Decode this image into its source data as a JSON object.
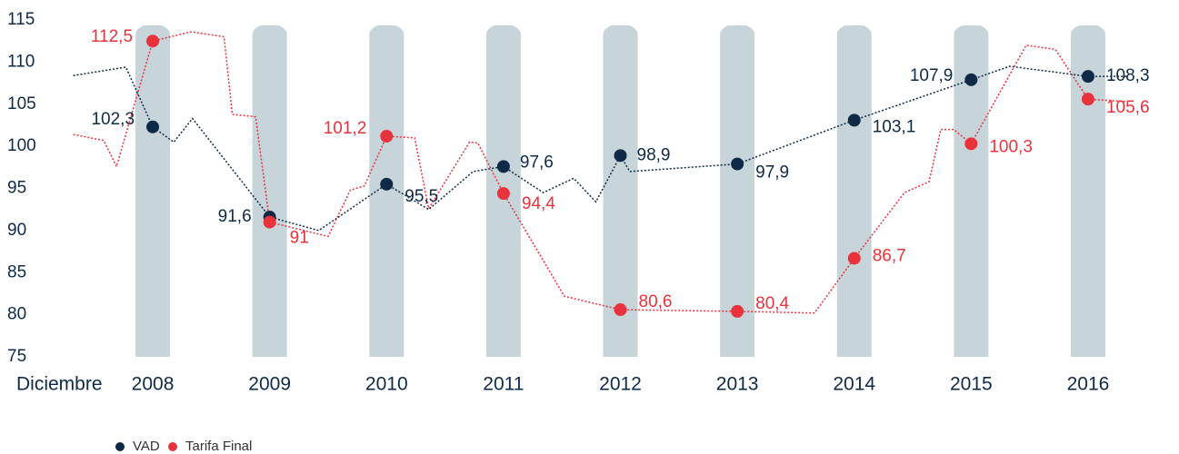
{
  "chart_data": {
    "type": "line",
    "x_prefix": "Diciembre",
    "categories": [
      2008,
      2009,
      2010,
      2011,
      2012,
      2013,
      2014,
      2015,
      2016
    ],
    "xlim": [
      2007.3,
      2016.35
    ],
    "ylim": [
      75,
      115
    ],
    "yticks": [
      75,
      80,
      85,
      90,
      95,
      100,
      105,
      110,
      115
    ],
    "legend": "bottom-left",
    "series": [
      {
        "name": "VAD",
        "color": "#0e2a47",
        "values": [
          102.3,
          91.6,
          95.5,
          97.6,
          98.9,
          97.9,
          103.1,
          107.9,
          108.3
        ],
        "value_labels": [
          "102,3",
          "91,6",
          "95,5",
          "97,6",
          "98,9",
          "97,9",
          "103,1",
          "107,9",
          "108,3"
        ],
        "line_x": [
          2007.32,
          2007.77,
          2008,
          2008.18,
          2008.34,
          2009,
          2009.42,
          2010,
          2010.36,
          2010.74,
          2011,
          2011.34,
          2011.6,
          2011.79,
          2012,
          2012.08,
          2013,
          2014,
          2015,
          2015.33,
          2016,
          2016.34
        ],
        "line_values": [
          108.4,
          109.4,
          102.3,
          100.5,
          103.3,
          91.6,
          90.0,
          95.5,
          92.5,
          97.0,
          97.6,
          94.5,
          96.2,
          93.4,
          98.9,
          97.0,
          97.9,
          103.1,
          107.9,
          109.5,
          108.3,
          108.3
        ]
      },
      {
        "name": "Tarifa Final",
        "color": "#e8323c",
        "values": [
          112.5,
          91,
          101.2,
          94.4,
          80.6,
          80.4,
          86.7,
          100.3,
          105.6
        ],
        "value_labels": [
          "112,5",
          "91",
          "101,2",
          "94,4",
          "80,6",
          "80,4",
          "86,7",
          "100,3",
          "105,6"
        ],
        "line_x": [
          2007.32,
          2007.58,
          2007.69,
          2008,
          2008.33,
          2008.61,
          2008.68,
          2008.88,
          2009,
          2009.5,
          2009.69,
          2009.81,
          2010,
          2010.24,
          2010.36,
          2010.71,
          2010.78,
          2011,
          2011.52,
          2012,
          2013,
          2013.66,
          2014,
          2014.43,
          2014.64,
          2014.74,
          2014.85,
          2015,
          2015.47,
          2015.72,
          2016,
          2016.34
        ],
        "line_values": [
          101.4,
          100.7,
          97.6,
          112.5,
          113.6,
          113.0,
          103.8,
          103.5,
          91,
          89.3,
          94.8,
          95.3,
          101.2,
          101.0,
          92.6,
          100.5,
          100.4,
          94.4,
          82.2,
          80.6,
          80.4,
          80.2,
          86.7,
          94.5,
          95.8,
          102.0,
          102.0,
          100.3,
          112.0,
          111.5,
          105.6,
          105.3
        ]
      }
    ]
  }
}
